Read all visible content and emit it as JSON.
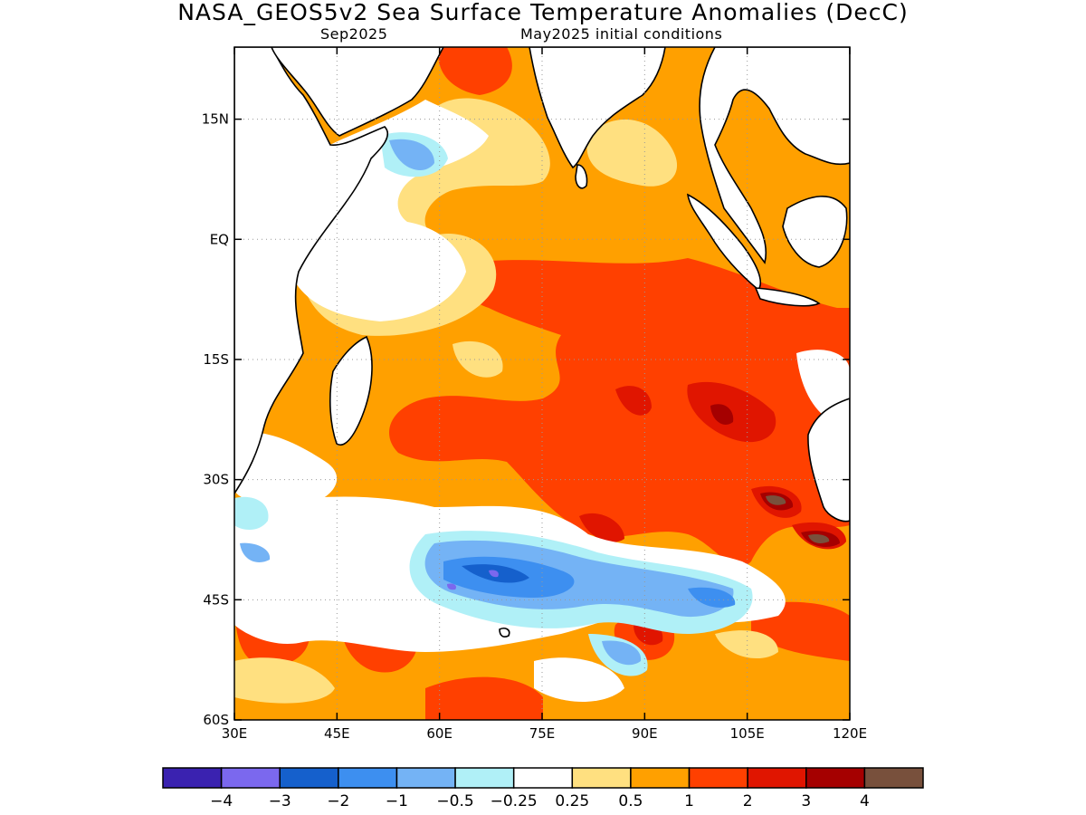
{
  "title": "NASA_GEOS5v2 Sea Surface Temperature Anomalies (DecC)",
  "subtitle_left": "Sep2025",
  "subtitle_right": "May2025 initial conditions",
  "map": {
    "lon_range": [
      30,
      120
    ],
    "lat_range": [
      -60,
      24
    ],
    "x_ticks": [
      {
        "value": 30,
        "label": "30E"
      },
      {
        "value": 45,
        "label": "45E"
      },
      {
        "value": 60,
        "label": "60E"
      },
      {
        "value": 75,
        "label": "75E"
      },
      {
        "value": 90,
        "label": "90E"
      },
      {
        "value": 105,
        "label": "105E"
      },
      {
        "value": 120,
        "label": "120E"
      }
    ],
    "y_ticks": [
      {
        "value": 15,
        "label": "15N"
      },
      {
        "value": 0,
        "label": "EQ"
      },
      {
        "value": -15,
        "label": "15S"
      },
      {
        "value": -30,
        "label": "30S"
      },
      {
        "value": -45,
        "label": "45S"
      },
      {
        "value": -60,
        "label": "60S"
      }
    ],
    "grid": "dotted"
  },
  "colorbar": {
    "colors": [
      "#3a22b0",
      "#7b68ee",
      "#1560cc",
      "#3d8ff0",
      "#74b3f5",
      "#b0f0f7",
      "#ffffff",
      "#ffe080",
      "#ffa000",
      "#ff4000",
      "#e01500",
      "#a50000",
      "#78503c"
    ],
    "labels": [
      "−4",
      "−3",
      "−2",
      "−1",
      "−0.5",
      "−0.25",
      "0.25",
      "0.5",
      "1",
      "2",
      "3",
      "4"
    ]
  }
}
